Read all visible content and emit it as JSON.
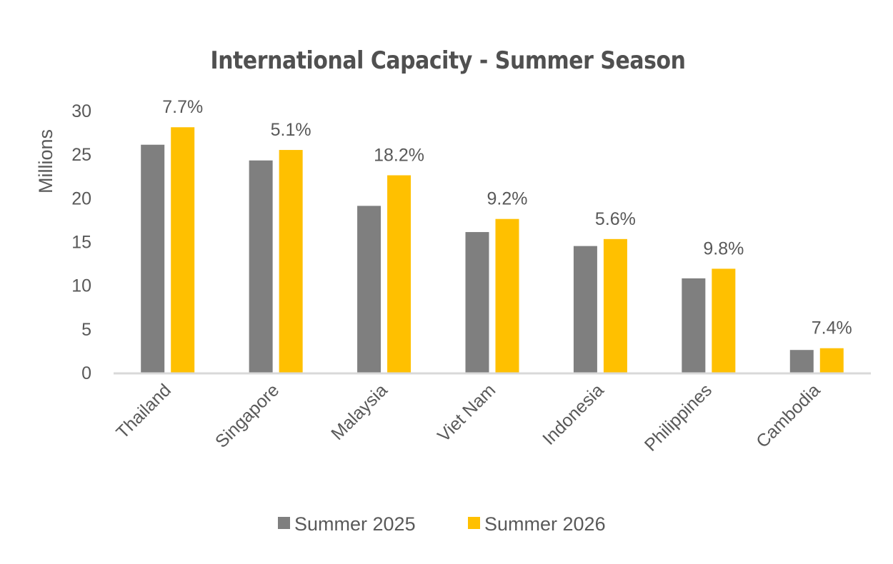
{
  "chart_data": {
    "type": "bar",
    "title": "International Capacity - Summer Season",
    "xlabel": "",
    "ylabel": "Millions",
    "ylim": [
      0,
      30
    ],
    "yticks": [
      0,
      5,
      10,
      15,
      20,
      25,
      30
    ],
    "grid": false,
    "legend_position": "bottom",
    "categories": [
      "Thailand",
      "Singapore",
      "Malaysia",
      "Viet Nam",
      "Indonesia",
      "Philippines",
      "Cambodia"
    ],
    "series": [
      {
        "name": "Summer 2025",
        "color": "#7f7f7f",
        "values": [
          26.1,
          24.3,
          19.1,
          16.1,
          14.5,
          10.8,
          2.6
        ]
      },
      {
        "name": "Summer 2026",
        "color": "#ffc000",
        "values": [
          28.1,
          25.5,
          22.6,
          17.6,
          15.3,
          11.9,
          2.8
        ]
      }
    ],
    "data_labels": [
      "7.7%",
      "5.1%",
      "18.2%",
      "9.2%",
      "5.6%",
      "9.8%",
      "7.4%"
    ],
    "axis_color": "#d9d9d9"
  }
}
